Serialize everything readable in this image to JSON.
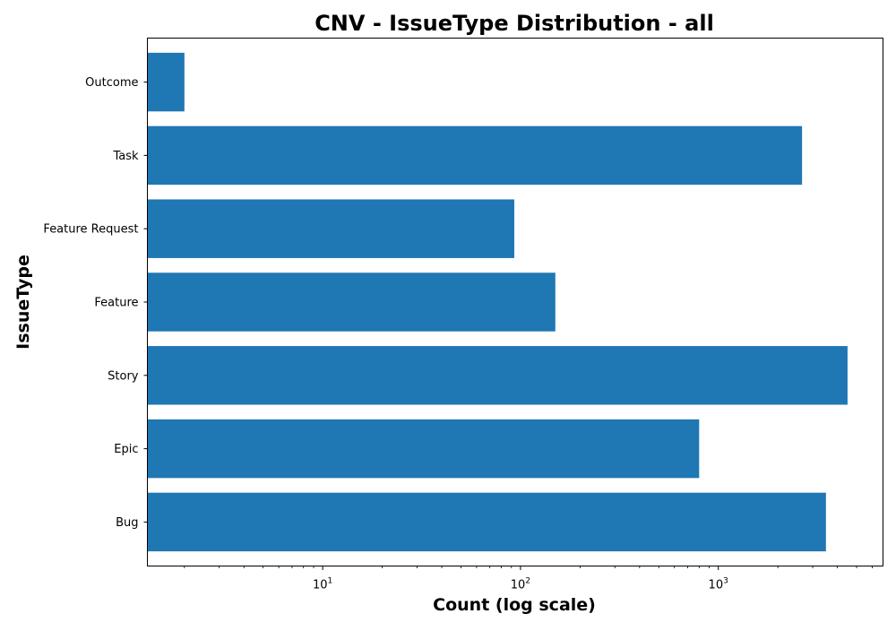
{
  "chart_data": {
    "type": "bar",
    "orientation": "horizontal",
    "title": "CNV - IssueType Distribution - all",
    "xlabel": "Count (log scale)",
    "ylabel": "IssueType",
    "x_scale": "log",
    "xlim": [
      1.3,
      6800
    ],
    "x_ticks": [
      {
        "value": 10,
        "base": "10",
        "exp": "1"
      },
      {
        "value": 100,
        "base": "10",
        "exp": "2"
      },
      {
        "value": 1000,
        "base": "10",
        "exp": "3"
      }
    ],
    "categories": [
      "Bug",
      "Epic",
      "Story",
      "Feature",
      "Feature Request",
      "Task",
      "Outcome"
    ],
    "values": [
      3500,
      800,
      4500,
      150,
      93,
      2650,
      2
    ],
    "bar_color": "#1f77b4",
    "grid": false,
    "legend": "none"
  }
}
